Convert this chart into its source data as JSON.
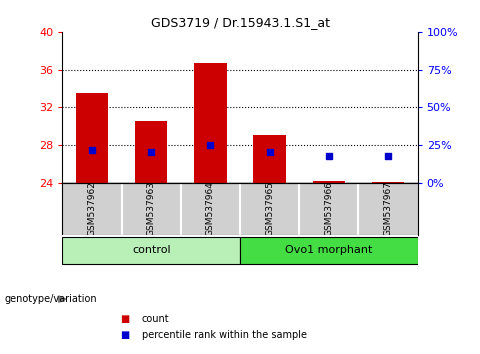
{
  "title": "GDS3719 / Dr.15943.1.S1_at",
  "samples": [
    "GSM537962",
    "GSM537963",
    "GSM537964",
    "GSM537965",
    "GSM537966",
    "GSM537967"
  ],
  "counts": [
    33.5,
    30.5,
    36.7,
    29.0,
    24.2,
    24.1
  ],
  "percentile_ranks": [
    27.5,
    27.2,
    28.0,
    27.2,
    26.8,
    26.8
  ],
  "ylim_left": [
    24,
    40
  ],
  "ylim_right": [
    0,
    100
  ],
  "yticks_left": [
    24,
    28,
    32,
    36,
    40
  ],
  "yticks_right": [
    0,
    25,
    50,
    75,
    100
  ],
  "ytick_labels_right": [
    "0%",
    "25%",
    "50%",
    "75%",
    "100%"
  ],
  "gridlines_at": [
    28,
    32,
    36
  ],
  "groups": [
    {
      "label": "control",
      "start": 0,
      "end": 3,
      "color": "#b8f0b8"
    },
    {
      "label": "Ovo1 morphant",
      "start": 3,
      "end": 6,
      "color": "#44dd44"
    }
  ],
  "bar_color": "#cc0000",
  "scatter_color": "#0000cc",
  "baseline": 24,
  "bar_width": 0.55,
  "bg_color": "#ffffff",
  "tick_area_bg": "#d0d0d0",
  "group_label_text": "genotype/variation",
  "legend_count_label": "count",
  "legend_pct_label": "percentile rank within the sample"
}
